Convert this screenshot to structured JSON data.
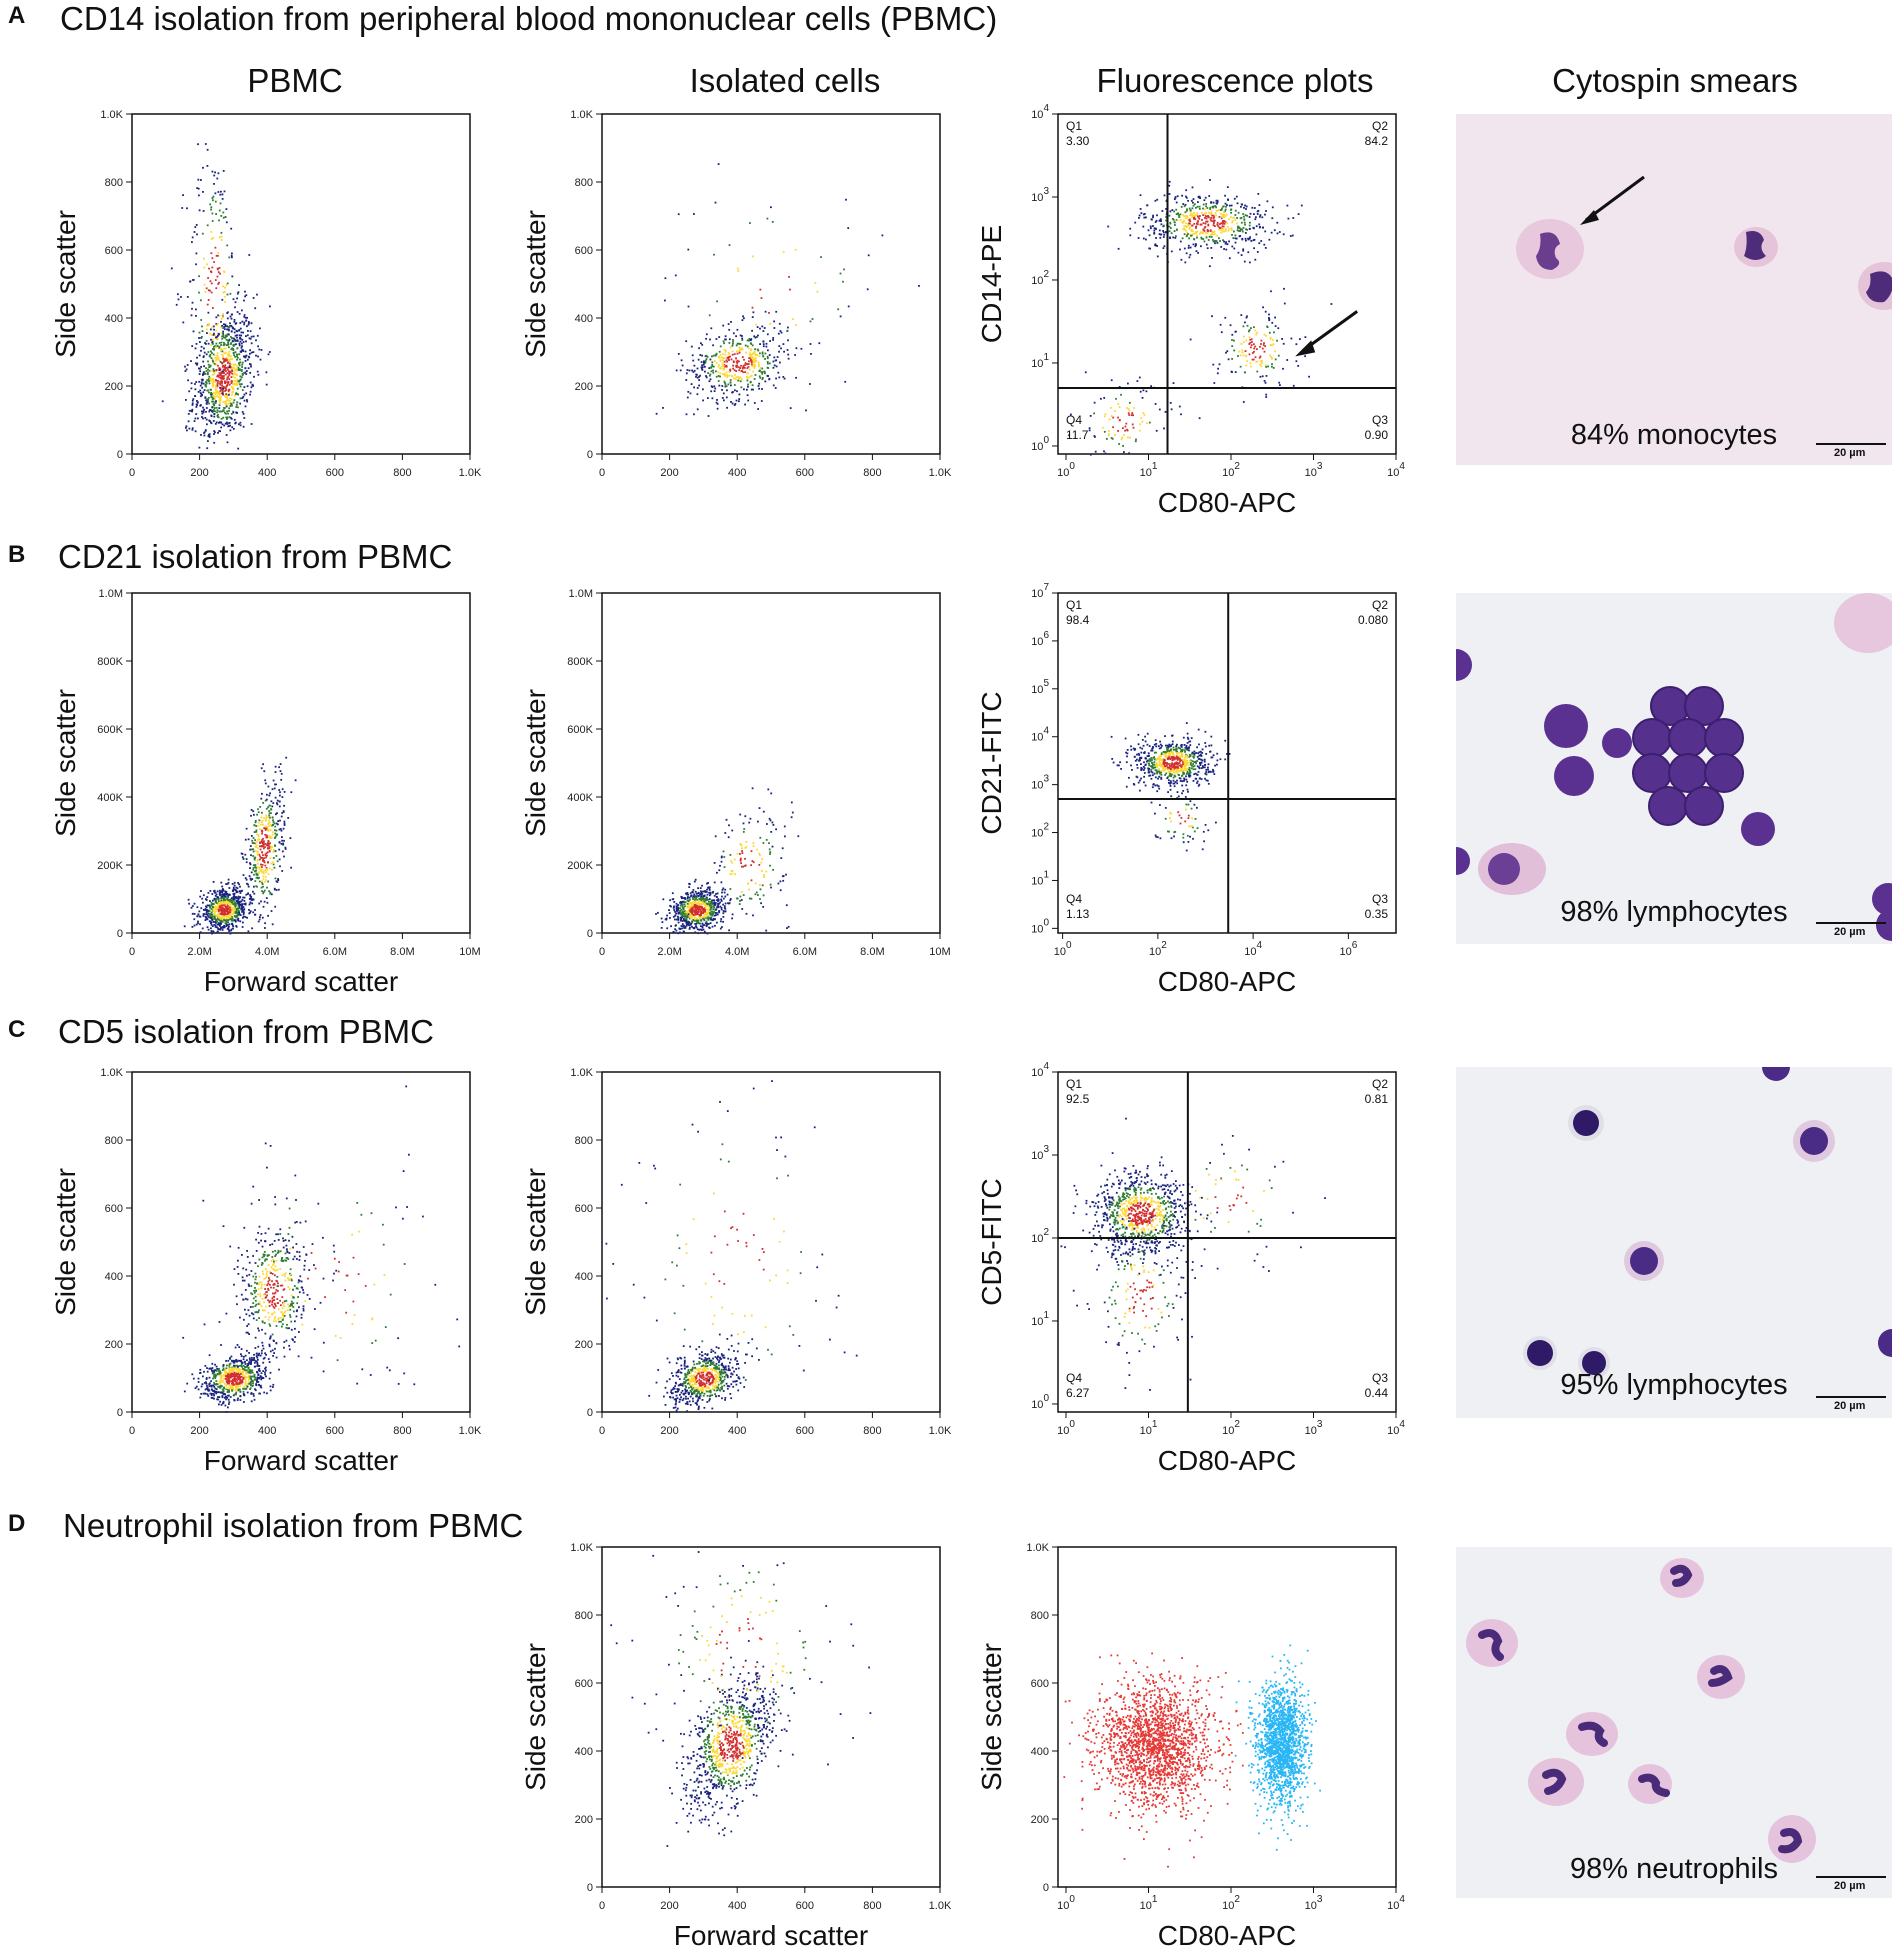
{
  "headers": {
    "col1": "PBMC",
    "col2": "Isolated cells",
    "col3": "Fluorescence plots",
    "col4": "Cytospin smears"
  },
  "rows": [
    {
      "letter": "A",
      "title": "CD14 isolation from peripheral blood mononuclear cells (PBMC)",
      "smear_caption": "84% monocytes"
    },
    {
      "letter": "B",
      "title": "CD21 isolation from PBMC",
      "smear_caption": "98% lymphocytes"
    },
    {
      "letter": "C",
      "title": "CD5 isolation from PBMC",
      "smear_caption": "95% lymphocytes"
    },
    {
      "letter": "D",
      "title": "Neutrophil isolation from PBMC",
      "smear_caption": "98% neutrophils"
    }
  ],
  "scale_bar_label": "20 µm",
  "colors": {
    "density_low": "#1a237e",
    "density_mid": "#2e7d32",
    "density_high": "#fdd835",
    "density_peak": "#d32f2f",
    "neutrophil_red": "#e53935",
    "neutrophil_cyan": "#29b6f6",
    "smear_bg_pink": "#f1e6ee",
    "smear_bg_white": "#eef0f4",
    "nucleus": "#4a2b7a"
  },
  "chart_data": [
    {
      "id": "A1",
      "type": "scatter",
      "xlabel": "",
      "ylabel": "Side scatter",
      "xlim": [
        0,
        1000
      ],
      "ylim": [
        0,
        1000
      ],
      "xticks": [
        "0",
        "200",
        "400",
        "600",
        "800",
        "1.0K"
      ],
      "xtick_values": [
        0,
        200,
        400,
        600,
        800,
        1000
      ],
      "yticks": [
        "0",
        "200",
        "400",
        "600",
        "800",
        "1.0K"
      ],
      "ytick_values": [
        0,
        200,
        400,
        600,
        800,
        1000
      ],
      "clusters": [
        {
          "x": 270,
          "y": 230,
          "sx": 45,
          "sy": 95,
          "n": 900,
          "rho": 0.3
        },
        {
          "x": 240,
          "y": 500,
          "sx": 40,
          "sy": 200,
          "n": 220,
          "rho": 0
        }
      ]
    },
    {
      "id": "A2",
      "type": "scatter",
      "xlabel": "",
      "ylabel": "Side scatter",
      "xlim": [
        0,
        1000
      ],
      "ylim": [
        0,
        1000
      ],
      "xticks": [
        "0",
        "200",
        "400",
        "600",
        "800",
        "1.0K"
      ],
      "xtick_values": [
        0,
        200,
        400,
        600,
        800,
        1000
      ],
      "yticks": [
        "0",
        "200",
        "400",
        "600",
        "800",
        "1.0K"
      ],
      "ytick_values": [
        0,
        200,
        400,
        600,
        800,
        1000
      ],
      "clusters": [
        {
          "x": 400,
          "y": 270,
          "sx": 75,
          "sy": 55,
          "n": 500,
          "rho": 0.2
        },
        {
          "x": 500,
          "y": 500,
          "sx": 170,
          "sy": 150,
          "n": 60,
          "rho": 0
        }
      ]
    },
    {
      "id": "A3",
      "type": "scatter",
      "scale": "log",
      "xlabel": "CD80-APC",
      "ylabel": "CD14-PE",
      "xlim": [
        0.8,
        10000
      ],
      "ylim": [
        0.8,
        10000
      ],
      "xticks": [
        "10^0",
        "10^1",
        "10^2",
        "10^3",
        "10^4"
      ],
      "xtick_values": [
        1,
        10,
        100,
        1000,
        10000
      ],
      "yticks": [
        "10^0",
        "10^1",
        "10^2",
        "10^3",
        "10^4"
      ],
      "ytick_values": [
        1,
        10,
        100,
        1000,
        10000
      ],
      "gate_x": 17,
      "gate_y": 5,
      "quadrants": {
        "Q1": "3.30",
        "Q2": "84.2",
        "Q3": "0.90",
        "Q4": "11.7"
      },
      "clusters": [
        {
          "x": 50,
          "y": 500,
          "sx": 0.4,
          "sy": 0.18,
          "n": 600,
          "rho": 0
        },
        {
          "x": 200,
          "y": 15,
          "sx": 0.25,
          "sy": 0.25,
          "n": 160,
          "rho": 0
        },
        {
          "x": 5,
          "y": 2,
          "sx": 0.3,
          "sy": 0.25,
          "n": 110,
          "rho": 0
        }
      ]
    },
    {
      "id": "B1",
      "type": "scatter",
      "xlabel": "Forward scatter",
      "ylabel": "Side scatter",
      "xlim": [
        0,
        10000000
      ],
      "ylim": [
        0,
        1000000
      ],
      "xticks": [
        "0",
        "2.0M",
        "4.0M",
        "6.0M",
        "8.0M",
        "10M"
      ],
      "xtick_values": [
        0,
        2000000,
        4000000,
        6000000,
        8000000,
        10000000
      ],
      "yticks": [
        "0",
        "200K",
        "400K",
        "600K",
        "800K",
        "1.0M"
      ],
      "ytick_values": [
        0,
        200000,
        400000,
        600000,
        800000,
        1000000
      ],
      "clusters": [
        {
          "x": 2700000,
          "y": 70000,
          "sx": 350000,
          "sy": 30000,
          "n": 700,
          "rho": 0.2
        },
        {
          "x": 3900000,
          "y": 250000,
          "sx": 300000,
          "sy": 110000,
          "n": 450,
          "rho": 0.5
        }
      ]
    },
    {
      "id": "B2",
      "type": "scatter",
      "xlabel": "",
      "ylabel": "Side scatter",
      "xlim": [
        0,
        10000000
      ],
      "ylim": [
        0,
        1000000
      ],
      "xticks": [
        "0",
        "2.0M",
        "4.0M",
        "6.0M",
        "8.0M",
        "10M"
      ],
      "xtick_values": [
        0,
        2000000,
        4000000,
        6000000,
        8000000,
        10000000
      ],
      "yticks": [
        "0",
        "200K",
        "400K",
        "600K",
        "800K",
        "1.0M"
      ],
      "ytick_values": [
        0,
        200000,
        400000,
        600000,
        800000,
        1000000
      ],
      "clusters": [
        {
          "x": 2800000,
          "y": 70000,
          "sx": 400000,
          "sy": 30000,
          "n": 700,
          "rho": 0.2
        },
        {
          "x": 4300000,
          "y": 200000,
          "sx": 600000,
          "sy": 90000,
          "n": 160,
          "rho": 0.3
        }
      ]
    },
    {
      "id": "B3",
      "type": "scatter",
      "scale": "log",
      "xlabel": "CD80-APC",
      "ylabel": "CD21-FITC",
      "xlim": [
        0.8,
        10000000
      ],
      "ylim": [
        0.8,
        10000000
      ],
      "xticks": [
        "10^0",
        "10^2",
        "10^4",
        "10^6"
      ],
      "xtick_values": [
        1,
        100,
        10000,
        1000000
      ],
      "yticks": [
        "10^0",
        "10^1",
        "10^2",
        "10^3",
        "10^4",
        "10^5",
        "10^6",
        "10^7"
      ],
      "ytick_values": [
        1,
        10,
        100,
        1000,
        10000,
        100000,
        1000000,
        10000000
      ],
      "gate_x": 3000,
      "gate_y": 500,
      "quadrants": {
        "Q1": "98.4",
        "Q2": "0.080",
        "Q3": "0.35",
        "Q4": "1.13"
      },
      "clusters": [
        {
          "x": 200,
          "y": 3000,
          "sx": 0.4,
          "sy": 0.25,
          "n": 700,
          "rho": 0
        },
        {
          "x": 300,
          "y": 200,
          "sx": 0.3,
          "sy": 0.3,
          "n": 60,
          "rho": 0
        }
      ]
    },
    {
      "id": "C1",
      "type": "scatter",
      "xlabel": "Forward scatter",
      "ylabel": "Side scatter",
      "xlim": [
        0,
        1000
      ],
      "ylim": [
        0,
        1000
      ],
      "xticks": [
        "0",
        "200",
        "400",
        "600",
        "800",
        "1.0K"
      ],
      "xtick_values": [
        0,
        200,
        400,
        600,
        800,
        1000
      ],
      "yticks": [
        "0",
        "200",
        "400",
        "600",
        "800",
        "1.0K"
      ],
      "ytick_values": [
        0,
        200,
        400,
        600,
        800,
        1000
      ],
      "clusters": [
        {
          "x": 300,
          "y": 100,
          "sx": 50,
          "sy": 35,
          "n": 650,
          "rho": 0.3
        },
        {
          "x": 420,
          "y": 360,
          "sx": 55,
          "sy": 100,
          "n": 450,
          "rho": 0.2
        },
        {
          "x": 600,
          "y": 400,
          "sx": 170,
          "sy": 200,
          "n": 90,
          "rho": 0
        }
      ]
    },
    {
      "id": "C2",
      "type": "scatter",
      "xlabel": "",
      "ylabel": "Side scatter",
      "xlim": [
        0,
        1000
      ],
      "ylim": [
        0,
        1000
      ],
      "xticks": [
        "0",
        "200",
        "400",
        "600",
        "800",
        "1.0K"
      ],
      "xtick_values": [
        0,
        200,
        400,
        600,
        800,
        1000
      ],
      "yticks": [
        "0",
        "200",
        "400",
        "600",
        "800",
        "1.0K"
      ],
      "ytick_values": [
        0,
        200,
        400,
        600,
        800,
        1000
      ],
      "clusters": [
        {
          "x": 300,
          "y": 100,
          "sx": 50,
          "sy": 40,
          "n": 650,
          "rho": 0.4
        },
        {
          "x": 400,
          "y": 450,
          "sx": 170,
          "sy": 280,
          "n": 110,
          "rho": 0
        }
      ]
    },
    {
      "id": "C3",
      "type": "scatter",
      "scale": "log",
      "xlabel": "CD80-APC",
      "ylabel": "CD5-FITC",
      "xlim": [
        0.8,
        10000
      ],
      "ylim": [
        0.8,
        10000
      ],
      "xticks": [
        "10^0",
        "10^1",
        "10^2",
        "10^3",
        "10^4"
      ],
      "xtick_values": [
        1,
        10,
        100,
        1000,
        10000
      ],
      "yticks": [
        "10^0",
        "10^1",
        "10^2",
        "10^3",
        "10^4"
      ],
      "ytick_values": [
        1,
        10,
        100,
        1000,
        10000
      ],
      "gate_x": 30,
      "gate_y": 100,
      "quadrants": {
        "Q1": "92.5",
        "Q2": "0.81",
        "Q3": "0.44",
        "Q4": "6.27"
      },
      "clusters": [
        {
          "x": 8,
          "y": 200,
          "sx": 0.3,
          "sy": 0.25,
          "n": 850,
          "rho": 0
        },
        {
          "x": 8,
          "y": 20,
          "sx": 0.3,
          "sy": 0.45,
          "n": 160,
          "rho": 0
        },
        {
          "x": 100,
          "y": 300,
          "sx": 0.5,
          "sy": 0.4,
          "n": 60,
          "rho": 0
        }
      ]
    },
    {
      "id": "D1",
      "type": "scatter",
      "xlabel": "Forward scatter",
      "ylabel": "Side scatter",
      "xlim": [
        0,
        1000
      ],
      "ylim": [
        0,
        1000
      ],
      "xticks": [
        "0",
        "200",
        "400",
        "600",
        "800",
        "1.0K"
      ],
      "xtick_values": [
        0,
        200,
        400,
        600,
        800,
        1000
      ],
      "yticks": [
        "0",
        "200",
        "400",
        "600",
        "800",
        "1.0K"
      ],
      "ytick_values": [
        0,
        200,
        400,
        600,
        800,
        1000
      ],
      "clusters": [
        {
          "x": 380,
          "y": 420,
          "sx": 65,
          "sy": 95,
          "n": 900,
          "rho": 0.5
        },
        {
          "x": 420,
          "y": 700,
          "sx": 150,
          "sy": 180,
          "n": 160,
          "rho": 0
        }
      ]
    },
    {
      "id": "D2",
      "type": "scatter",
      "scale": "logx",
      "xlabel": "CD80-APC",
      "ylabel": "Side scatter",
      "xlim": [
        0.8,
        10000
      ],
      "ylim": [
        0,
        1000
      ],
      "xticks": [
        "10^0",
        "10^1",
        "10^2",
        "10^3",
        "10^4"
      ],
      "xtick_values": [
        1,
        10,
        100,
        1000,
        10000
      ],
      "yticks": [
        "0",
        "200",
        "400",
        "600",
        "800",
        "1.0K"
      ],
      "ytick_values": [
        0,
        200,
        400,
        600,
        800,
        1000
      ],
      "colored_clusters": [
        {
          "x": 12,
          "y": 420,
          "sx": 0.35,
          "sy": 90,
          "n": 1800,
          "color": "#e53935"
        },
        {
          "x": 400,
          "y": 420,
          "sx": 0.15,
          "sy": 90,
          "n": 1600,
          "color": "#29b6f6"
        }
      ]
    }
  ]
}
